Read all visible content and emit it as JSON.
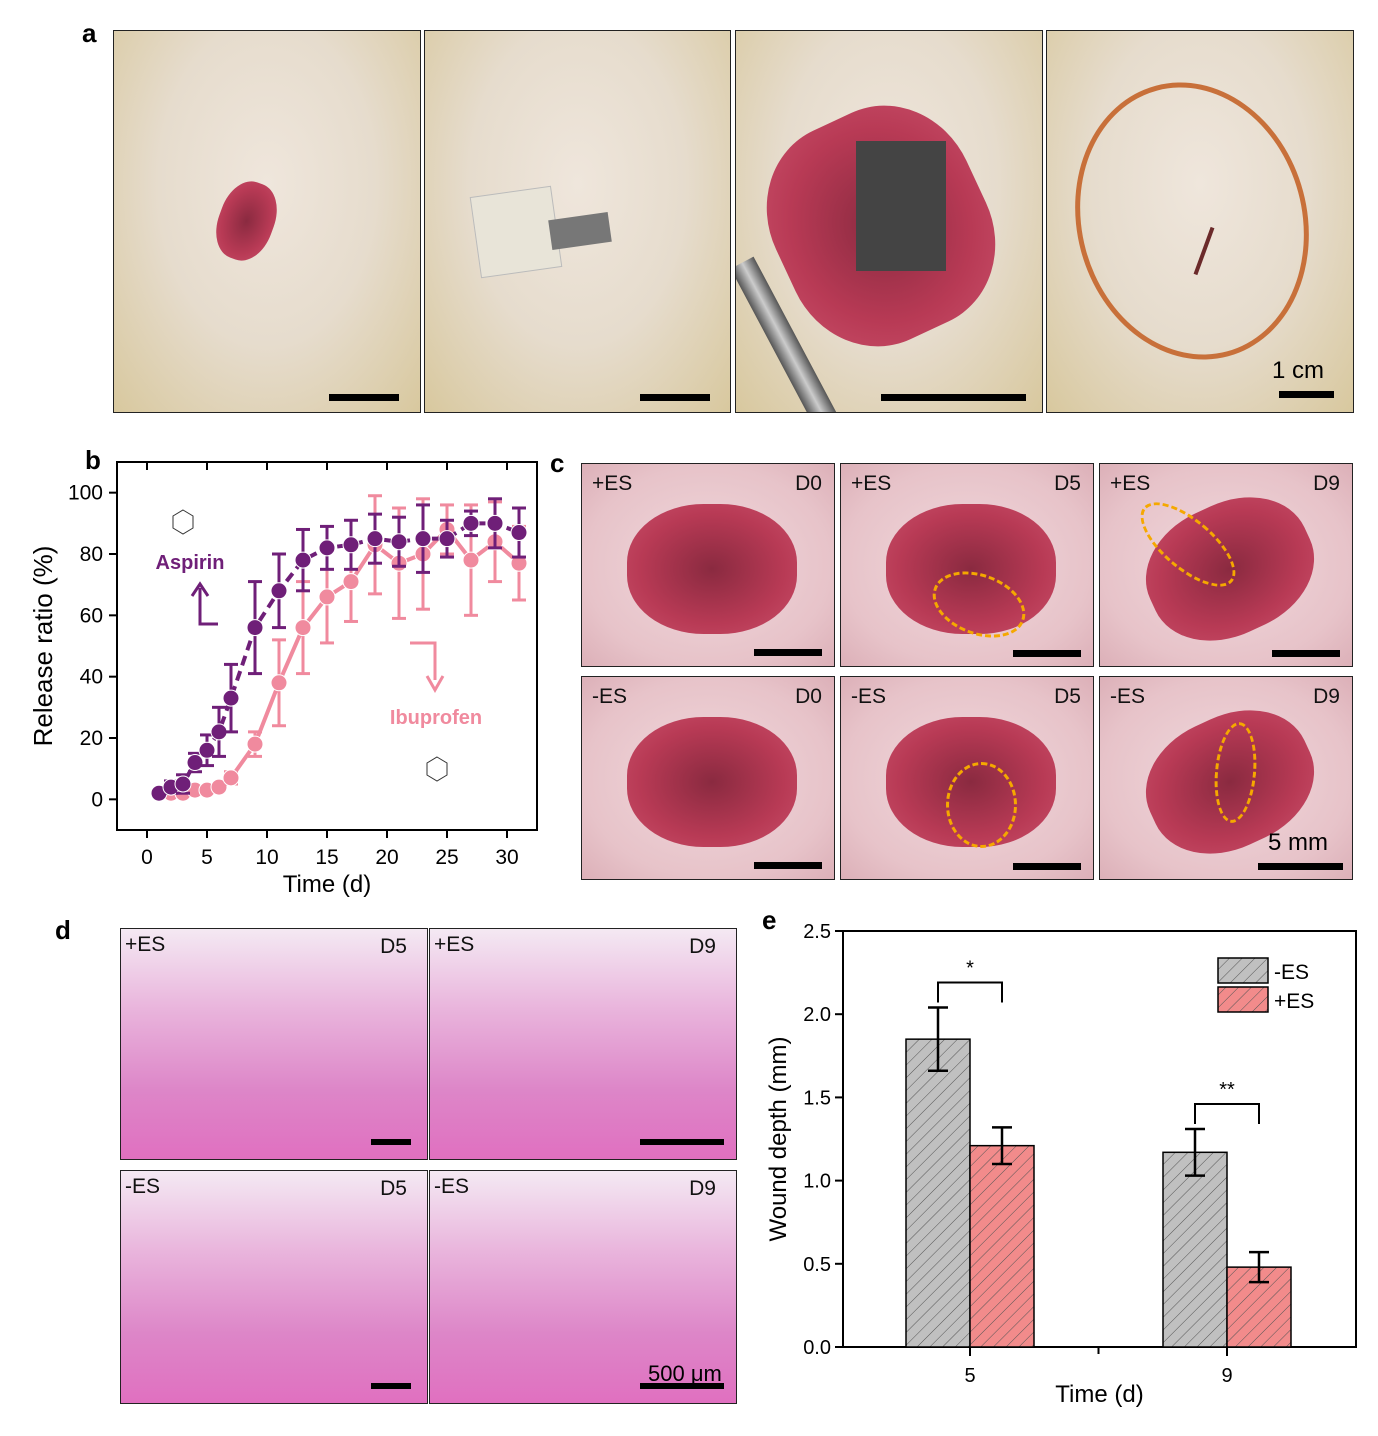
{
  "panel_labels": {
    "a": "a",
    "b": "b",
    "c": "c",
    "d": "d",
    "e": "e"
  },
  "panel_a": {
    "scale_label": "1 cm"
  },
  "panel_c": {
    "cells": [
      {
        "group": "+ES",
        "day": "D0"
      },
      {
        "group": "+ES",
        "day": "D5"
      },
      {
        "group": "+ES",
        "day": "D9"
      },
      {
        "group": "-ES",
        "day": "D0"
      },
      {
        "group": "-ES",
        "day": "D5"
      },
      {
        "group": "-ES",
        "day": "D9"
      }
    ],
    "scale_label": "5 mm"
  },
  "panel_d": {
    "cells": [
      {
        "group": "+ES",
        "day": "D5"
      },
      {
        "group": "+ES",
        "day": "D9"
      },
      {
        "group": "-ES",
        "day": "D5"
      },
      {
        "group": "-ES",
        "day": "D9"
      }
    ],
    "scale_label": "500 μm"
  },
  "chart_data": [
    {
      "panel": "b",
      "type": "line",
      "xlabel": "Time (d)",
      "ylabel": "Release ratio (%)",
      "xlim": [
        -2.5,
        32.5
      ],
      "ylim": [
        -10,
        110
      ],
      "xticks": [
        0,
        5,
        10,
        15,
        20,
        25,
        30
      ],
      "yticks": [
        0,
        20,
        40,
        60,
        80,
        100
      ],
      "grid": false,
      "series": [
        {
          "name": "Aspirin",
          "color": "#6f1f78",
          "style": "dashed",
          "x": [
            1,
            2,
            3,
            4,
            5,
            6,
            7,
            9,
            11,
            13,
            15,
            17,
            19,
            21,
            23,
            25,
            27,
            29,
            31
          ],
          "y": [
            2,
            4,
            5,
            12,
            16,
            22,
            33,
            56,
            68,
            78,
            82,
            83,
            85,
            84,
            85,
            85,
            90,
            90,
            87
          ],
          "err": [
            1,
            2,
            3,
            3,
            5,
            8,
            11,
            15,
            12,
            10,
            7,
            8,
            8,
            8,
            11,
            6,
            4,
            8,
            8
          ]
        },
        {
          "name": "Ibuprofen",
          "color": "#f08a9e",
          "style": "solid",
          "x": [
            1,
            2,
            3,
            4,
            5,
            6,
            7,
            9,
            11,
            13,
            15,
            17,
            19,
            21,
            23,
            25,
            27,
            29,
            31
          ],
          "y": [
            2,
            2,
            2,
            3,
            3,
            4,
            7,
            18,
            38,
            56,
            66,
            71,
            83,
            77,
            80,
            88,
            78,
            84,
            77
          ],
          "err": [
            1,
            1,
            1,
            1,
            1,
            1,
            2,
            4,
            14,
            15,
            15,
            13,
            16,
            18,
            18,
            8,
            18,
            13,
            12
          ]
        }
      ]
    },
    {
      "panel": "e",
      "type": "bar",
      "xlabel": "Time (d)",
      "ylabel": "Wound depth (mm)",
      "categories": [
        "5",
        "9"
      ],
      "ylim": [
        0,
        2.5
      ],
      "yticks": [
        "0.0",
        "0.5",
        "1.0",
        "1.5",
        "2.0",
        "2.5"
      ],
      "legend": "top-right",
      "series": [
        {
          "name": "-ES",
          "color": "#c0c0c0",
          "values": [
            1.85,
            1.17
          ],
          "err": [
            0.19,
            0.14
          ]
        },
        {
          "name": "+ES",
          "color": "#f28b8b",
          "values": [
            1.21,
            0.48
          ],
          "err": [
            0.11,
            0.09
          ]
        }
      ],
      "significance": [
        "*",
        "**"
      ]
    }
  ]
}
